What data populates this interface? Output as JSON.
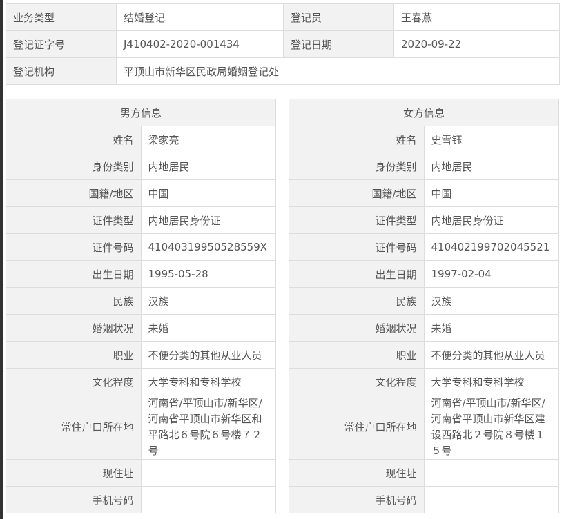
{
  "summary": {
    "business_type_label": "业务类型",
    "business_type": "结婚登记",
    "registrar_label": "登记员",
    "registrar": "王春燕",
    "cert_no_label": "登记证字号",
    "cert_no": "J410402-2020-001434",
    "date_label": "登记日期",
    "date": "2020-09-22",
    "office_label": "登记机构",
    "office": "平顶山市新华区民政局婚姻登记处"
  },
  "labels": [
    "姓名",
    "身份类别",
    "国籍/地区",
    "证件类型",
    "证件号码",
    "出生日期",
    "民族",
    "婚姻状况",
    "职业",
    "文化程度",
    "常住户口所在地",
    "现住址",
    "手机号码"
  ],
  "male": {
    "title": "男方信息",
    "values": [
      "梁家亮",
      "内地居民",
      "中国",
      "内地居民身份证",
      "41040319950528559X",
      "1995-05-28",
      "汉族",
      "未婚",
      "不便分类的其他从业人员",
      "大学专科和专科学校",
      "河南省/平顶山市/新华区/河南省平顶山市新华区和平路北６号院６号楼７２号",
      "",
      ""
    ]
  },
  "female": {
    "title": "女方信息",
    "values": [
      "史雪钰",
      "内地居民",
      "中国",
      "内地居民身份证",
      "410402199702045521",
      "1997-02-04",
      "汉族",
      "未婚",
      "不便分类的其他从业人员",
      "大学专科和专科学校",
      "河南省/平顶山市/新华区/河南省平顶山市新华区建设西路北２号院８号楼１５号",
      "",
      ""
    ]
  }
}
